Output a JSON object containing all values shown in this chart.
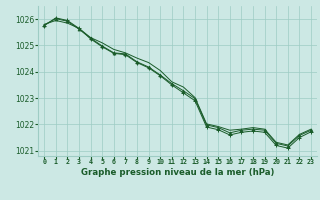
{
  "title": "Graphe pression niveau de la mer (hPa)",
  "background_color": "#cce8e4",
  "grid_color": "#9eccc4",
  "line_color": "#1a5c2a",
  "xlim": [
    -0.5,
    23.5
  ],
  "ylim": [
    1020.8,
    1026.5
  ],
  "xticks": [
    0,
    1,
    2,
    3,
    4,
    5,
    6,
    7,
    8,
    9,
    10,
    11,
    12,
    13,
    14,
    15,
    16,
    17,
    18,
    19,
    20,
    21,
    22,
    23
  ],
  "yticks": [
    1021,
    1022,
    1023,
    1024,
    1025,
    1026
  ],
  "line1": [
    1025.8,
    1025.95,
    1025.85,
    1025.65,
    1025.3,
    1025.1,
    1024.85,
    1024.72,
    1024.52,
    1024.35,
    1024.05,
    1023.62,
    1023.42,
    1023.02,
    1022.02,
    1021.92,
    1021.78,
    1021.82,
    1021.88,
    1021.82,
    1021.32,
    1021.22,
    1021.62,
    1021.82
  ],
  "line2": [
    1025.78,
    1026.02,
    1025.92,
    1025.62,
    1025.28,
    1024.98,
    1024.72,
    1024.68,
    1024.38,
    1024.18,
    1023.88,
    1023.55,
    1023.28,
    1022.98,
    1021.98,
    1021.88,
    1021.68,
    1021.78,
    1021.82,
    1021.78,
    1021.28,
    1021.18,
    1021.58,
    1021.78
  ],
  "line3": [
    1025.75,
    1026.05,
    1025.95,
    1025.65,
    1025.25,
    1024.95,
    1024.7,
    1024.65,
    1024.35,
    1024.15,
    1023.85,
    1023.5,
    1023.2,
    1022.9,
    1021.9,
    1021.8,
    1021.6,
    1021.7,
    1021.75,
    1021.7,
    1021.2,
    1021.1,
    1021.5,
    1021.72
  ]
}
